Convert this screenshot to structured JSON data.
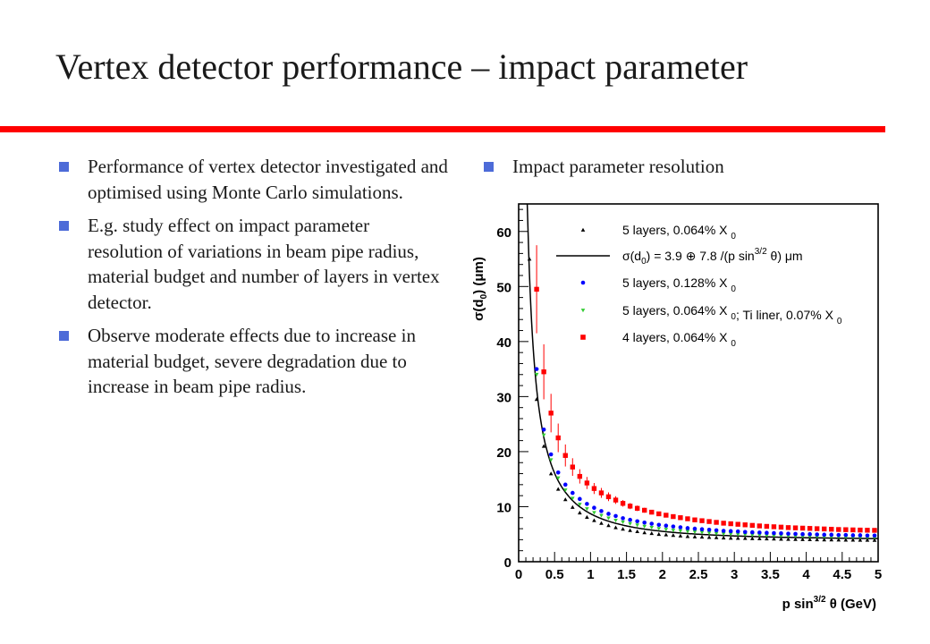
{
  "slide": {
    "title": "Vertex detector performance – impact parameter",
    "accent_color": "#ff0000",
    "bullet_color": "#4d6bd8"
  },
  "left_bullets": [
    "Performance of vertex detector investigated and optimised using Monte Carlo simulations.",
    "E.g. study effect on impact parameter resolution of variations in beam pipe radius, material budget and number of layers in vertex detector.",
    "Observe moderate effects due to increase in material budget, severe degradation due to increase in beam pipe radius."
  ],
  "right_bullets": [
    "Impact parameter resolution"
  ],
  "chart_data": {
    "type": "scatter",
    "xlabel": "p sin3/2 θ (GeV)",
    "ylabel": "σ(d0) (μm)",
    "xlim": [
      0,
      5
    ],
    "ylim": [
      0,
      65
    ],
    "xticks": [
      "0",
      "0.5",
      "1",
      "1.5",
      "2",
      "2.5",
      "3",
      "3.5",
      "4",
      "4.5",
      "5"
    ],
    "yticks": [
      "0",
      "10",
      "20",
      "30",
      "40",
      "50",
      "60"
    ],
    "legend_position": "top-right",
    "fit_formula": {
      "a": 3.9,
      "b": 7.8
    },
    "series": [
      {
        "name": "5 layers, 0.064% X0",
        "color": "#000000",
        "marker": "triangle",
        "x": [
          0.15,
          0.25,
          0.35,
          0.45,
          0.55,
          0.65,
          0.75,
          0.85,
          0.95,
          1.05,
          1.15,
          1.25,
          1.35,
          1.45,
          1.55,
          1.65,
          1.75,
          1.85,
          1.95,
          2.05,
          2.15,
          2.25,
          2.35,
          2.45,
          2.55,
          2.65,
          2.75,
          2.85,
          2.95,
          3.05,
          3.15,
          3.25,
          3.35,
          3.45,
          3.55,
          3.65,
          3.75,
          3.85,
          3.95,
          4.05,
          4.15,
          4.25,
          4.35,
          4.45,
          4.55,
          4.65,
          4.75,
          4.85,
          4.95
        ],
        "y": [
          55,
          29.5,
          21,
          16,
          13.2,
          11.3,
          9.9,
          8.9,
          8.1,
          7.5,
          7.0,
          6.6,
          6.2,
          5.95,
          5.7,
          5.5,
          5.3,
          5.15,
          5.0,
          4.9,
          4.8,
          4.7,
          4.6,
          4.55,
          4.5,
          4.45,
          4.4,
          4.35,
          4.3,
          4.28,
          4.25,
          4.22,
          4.2,
          4.18,
          4.15,
          4.12,
          4.1,
          4.08,
          4.06,
          4.04,
          4.02,
          4.0,
          4.0,
          3.98,
          3.96,
          3.95,
          3.94,
          3.93,
          3.92
        ]
      },
      {
        "name": "5 layers, 0.128% X0",
        "color": "#0000ff",
        "marker": "circle",
        "x": [
          0.25,
          0.35,
          0.45,
          0.55,
          0.65,
          0.75,
          0.85,
          0.95,
          1.05,
          1.15,
          1.25,
          1.35,
          1.45,
          1.55,
          1.65,
          1.75,
          1.85,
          1.95,
          2.05,
          2.15,
          2.25,
          2.35,
          2.45,
          2.55,
          2.65,
          2.75,
          2.85,
          2.95,
          3.05,
          3.15,
          3.25,
          3.35,
          3.45,
          3.55,
          3.65,
          3.75,
          3.85,
          3.95,
          4.05,
          4.15,
          4.25,
          4.35,
          4.45,
          4.55,
          4.65,
          4.75,
          4.85,
          4.95
        ],
        "y": [
          35,
          24,
          19.5,
          16.2,
          14,
          12.5,
          11.4,
          10.5,
          9.8,
          9.2,
          8.7,
          8.3,
          7.9,
          7.6,
          7.35,
          7.1,
          6.9,
          6.7,
          6.55,
          6.4,
          6.25,
          6.1,
          6.0,
          5.9,
          5.8,
          5.7,
          5.6,
          5.55,
          5.5,
          5.4,
          5.35,
          5.3,
          5.25,
          5.2,
          5.15,
          5.1,
          5.05,
          5.0,
          5.0,
          4.95,
          4.9,
          4.9,
          4.85,
          4.85,
          4.8,
          4.8,
          4.75,
          4.75
        ]
      },
      {
        "name": "5 layers, 0.064% X0; Ti liner, 0.07% X0",
        "color": "#33cc33",
        "marker": "triangle-down",
        "x": [
          0.25,
          0.35,
          0.45,
          0.55,
          0.65,
          0.75,
          0.85,
          0.95,
          1.05,
          1.15,
          1.25,
          1.35,
          1.45,
          1.55,
          1.65,
          1.75,
          1.85,
          1.95,
          2.05,
          2.15,
          2.25,
          2.35,
          2.45,
          2.55,
          2.65,
          2.75,
          2.85,
          2.95,
          3.05,
          3.15,
          3.25,
          3.35,
          3.45,
          3.55,
          3.65,
          3.75,
          3.85,
          3.95,
          4.05,
          4.15,
          4.25,
          4.35,
          4.45,
          4.55,
          4.65,
          4.75,
          4.85,
          4.95
        ],
        "y": [
          34,
          23,
          18.5,
          15.2,
          13,
          11.5,
          10.4,
          9.6,
          8.9,
          8.4,
          7.9,
          7.5,
          7.2,
          6.9,
          6.65,
          6.4,
          6.2,
          6.0,
          5.85,
          5.7,
          5.6,
          5.5,
          5.4,
          5.3,
          5.2,
          5.1,
          5.05,
          5.0,
          4.95,
          4.9,
          4.85,
          4.8,
          4.75,
          4.7,
          4.68,
          4.65,
          4.6,
          4.58,
          4.55,
          4.52,
          4.5,
          4.48,
          4.45,
          4.42,
          4.4,
          4.38,
          4.36,
          4.35
        ]
      },
      {
        "name": "4 layers, 0.064% X0",
        "color": "#ff0000",
        "marker": "square",
        "x": [
          0.25,
          0.35,
          0.45,
          0.55,
          0.65,
          0.75,
          0.85,
          0.95,
          1.05,
          1.15,
          1.25,
          1.35,
          1.45,
          1.55,
          1.65,
          1.75,
          1.85,
          1.95,
          2.05,
          2.15,
          2.25,
          2.35,
          2.45,
          2.55,
          2.65,
          2.75,
          2.85,
          2.95,
          3.05,
          3.15,
          3.25,
          3.35,
          3.45,
          3.55,
          3.65,
          3.75,
          3.85,
          3.95,
          4.05,
          4.15,
          4.25,
          4.35,
          4.45,
          4.55,
          4.65,
          4.75,
          4.85,
          4.95
        ],
        "y": [
          49.5,
          34.5,
          27,
          22.5,
          19.3,
          17.2,
          15.5,
          14.3,
          13.3,
          12.5,
          11.8,
          11.2,
          10.6,
          10.1,
          9.7,
          9.35,
          9.0,
          8.7,
          8.45,
          8.2,
          8.0,
          7.8,
          7.6,
          7.45,
          7.3,
          7.15,
          7.0,
          6.9,
          6.8,
          6.7,
          6.6,
          6.5,
          6.42,
          6.35,
          6.28,
          6.2,
          6.15,
          6.1,
          6.05,
          6.0,
          5.95,
          5.9,
          5.85,
          5.82,
          5.78,
          5.75,
          5.72,
          5.7
        ],
        "yerr": [
          8,
          5,
          3.5,
          2.6,
          2,
          1.6,
          1.3,
          1.1,
          1,
          0.9,
          0.8,
          0.7,
          0.6,
          0.55,
          0.5,
          0.45,
          0.4,
          0.35,
          0.3,
          0.3,
          0.3,
          0.3,
          0.25,
          0.25,
          0.25,
          0.2,
          0.2,
          0.2,
          0.2,
          0.2,
          0.2,
          0.2,
          0.2,
          0.2,
          0.2,
          0.2,
          0.2,
          0.2,
          0.2,
          0.2,
          0.2,
          0.2,
          0.2,
          0.2,
          0.2,
          0.2,
          0.2,
          0.2
        ]
      }
    ]
  }
}
